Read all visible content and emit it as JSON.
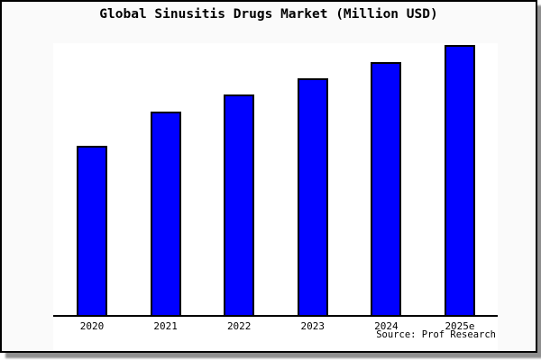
{
  "chart_data": {
    "type": "bar",
    "title": "Global Sinusitis Drugs Market (Million USD)",
    "categories": [
      "2020",
      "2021",
      "2022",
      "2023",
      "2024",
      "2025e"
    ],
    "values": [
      62.7,
      75.2,
      81.6,
      87.8,
      93.8,
      100
    ],
    "values_note": "No y-axis, gridlines or value labels are shown in the chart; values are relative bar heights normalized so the tallest bar (2025e) = 100.",
    "xlabel": "",
    "ylabel": "",
    "source": "Source: Prof Research",
    "bar_color": "#0000ff",
    "bar_border_color": "#000000",
    "grid": false,
    "legend": false,
    "y_axis_visible": false,
    "x_axis_visible": true,
    "layout": {
      "title_position": "top-center",
      "source_position": "bottom-right"
    }
  },
  "colors": {
    "bar_fill": "#0000ff",
    "outline": "#000000",
    "figure_margin_bg": "#fafafa",
    "plot_bg": "#ffffff",
    "frame_border": "#000000",
    "shadow": "#8f8f8f"
  }
}
